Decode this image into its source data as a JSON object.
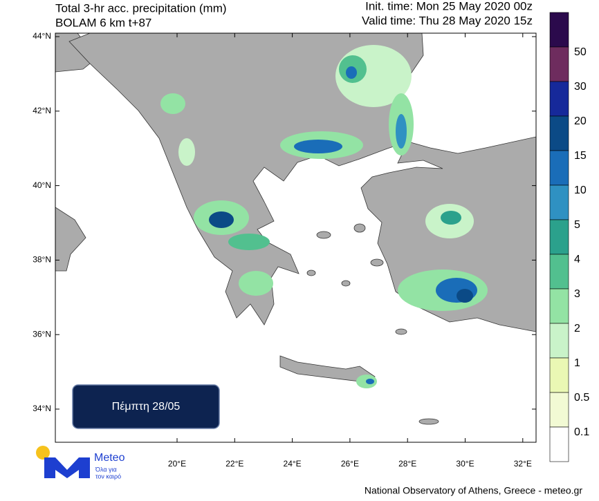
{
  "header": {
    "title": "Total 3-hr acc. precipitation (mm)",
    "model": "BOLAM 6 km t+87",
    "init_time": "Init. time: Mon 25 May 2020 00z",
    "valid_time": "Valid time: Thu 28 May 2020 15z"
  },
  "map": {
    "lat_labels": [
      "44°N",
      "42°N",
      "40°N",
      "38°N",
      "36°N",
      "34°N"
    ],
    "lon_labels": [
      "20°E",
      "22°E",
      "24°E",
      "26°E",
      "28°E",
      "30°E",
      "32°E"
    ]
  },
  "colorbar": {
    "levels": [
      50,
      30,
      20,
      15,
      10,
      5,
      4,
      3,
      2,
      1,
      0.5,
      0.1
    ],
    "colors": [
      "#2b0a4c",
      "#6e2c5e",
      "#16299a",
      "#0b4a86",
      "#1a6db8",
      "#2f91c2",
      "#2ba18c",
      "#52c08f",
      "#93e3a4",
      "#c9f3c9",
      "#eaf8b4",
      "#f2fad4",
      "#ffffff"
    ]
  },
  "badge": "Πέμπτη 28/05",
  "logo": {
    "name": "Meteo",
    "tagline_1": "Όλα για",
    "tagline_2": "τον καιρό"
  },
  "footer": "National Observatory of Athens, Greece - meteo.gr"
}
